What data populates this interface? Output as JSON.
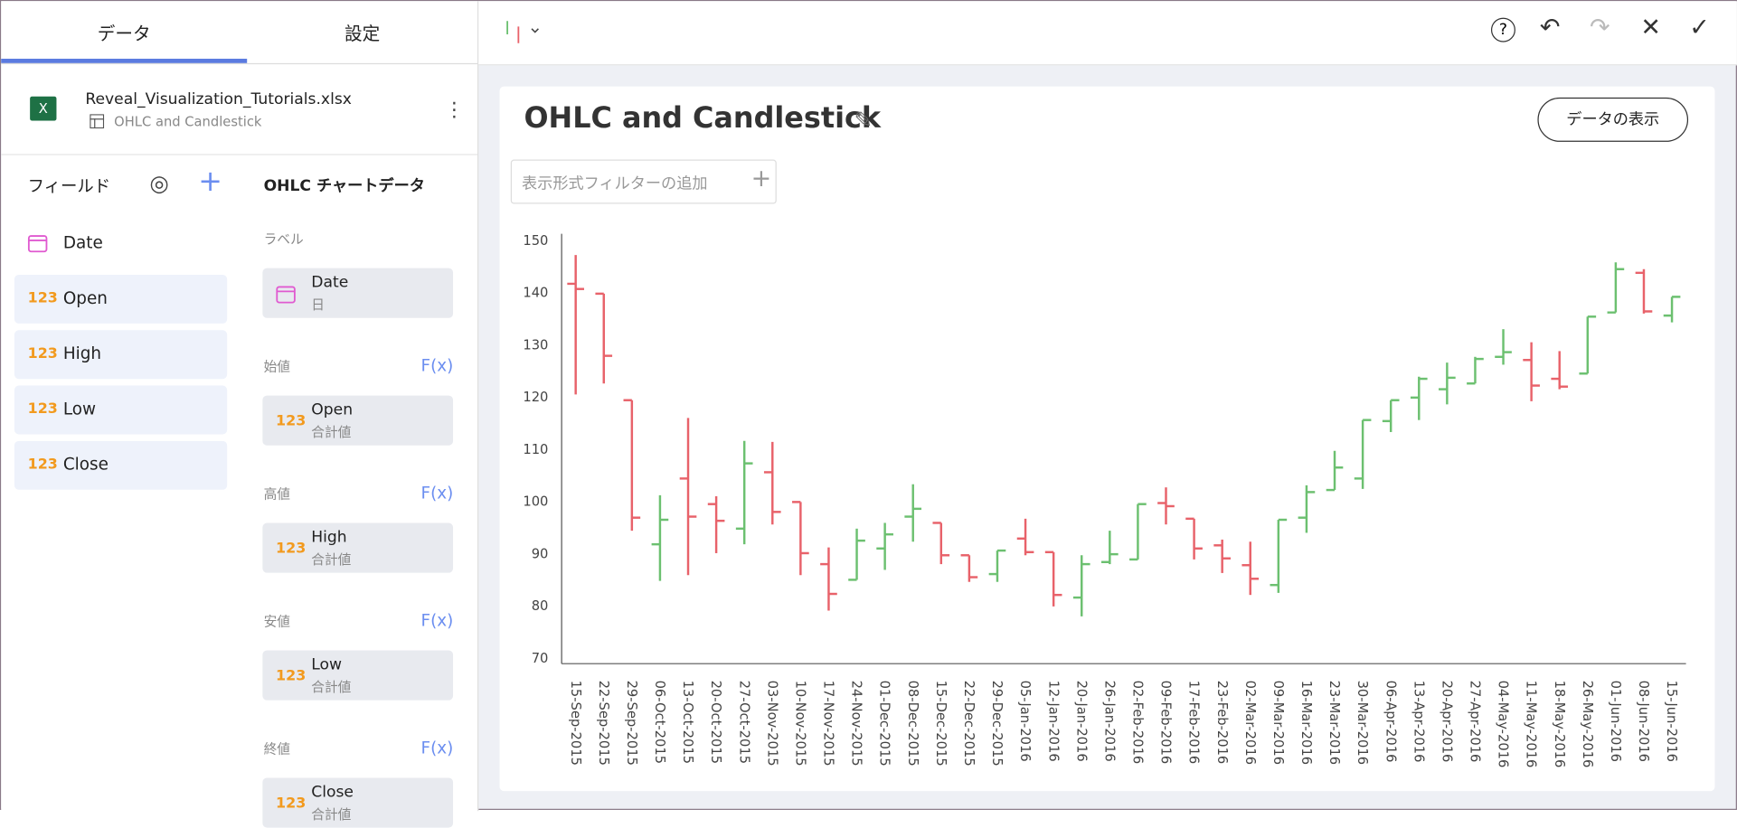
{
  "tabs": [
    "データ",
    "設定"
  ],
  "source": {
    "file": "Reveal_Visualization_Tutorials.xlsx",
    "sheet": "OHLC and Candlestick"
  },
  "fields_header": "フィールド",
  "fields": [
    {
      "name": "Date"
    },
    {
      "badge": "123",
      "name": "Open"
    },
    {
      "badge": "123",
      "name": "High"
    },
    {
      "badge": "123",
      "name": "Low"
    },
    {
      "badge": "123",
      "name": "Close"
    }
  ],
  "config": {
    "title": "OHLC チャートデータ",
    "sections": [
      {
        "label": "ラベル",
        "item": {
          "name": "Date",
          "agg": "日"
        }
      },
      {
        "label": "始値",
        "fx": "F(x)",
        "item": {
          "badge": "123",
          "name": "Open",
          "agg": "合計値"
        }
      },
      {
        "label": "高値",
        "fx": "F(x)",
        "item": {
          "badge": "123",
          "name": "High",
          "agg": "合計値"
        }
      },
      {
        "label": "安値",
        "fx": "F(x)",
        "item": {
          "badge": "123",
          "name": "Low",
          "agg": "合計値"
        }
      },
      {
        "label": "終値",
        "fx": "F(x)",
        "item": {
          "badge": "123",
          "name": "Close",
          "agg": "合計値"
        }
      }
    ]
  },
  "view_data_button": "データの表示",
  "filter_placeholder": "表示形式フィルターの追加",
  "chart_data": {
    "type": "ohlc",
    "title": "OHLC and Candlestick",
    "categories": [
      "15-Sep-2015",
      "22-Sep-2015",
      "29-Sep-2015",
      "06-Oct-2015",
      "13-Oct-2015",
      "20-Oct-2015",
      "27-Oct-2015",
      "03-Nov-2015",
      "10-Nov-2015",
      "17-Nov-2015",
      "24-Nov-2015",
      "01-Dec-2015",
      "08-Dec-2015",
      "15-Dec-2015",
      "22-Dec-2015",
      "29-Dec-2015",
      "05-Jan-2016",
      "12-Jan-2016",
      "20-Jan-2016",
      "26-Jan-2016",
      "02-Feb-2016",
      "09-Feb-2016",
      "17-Feb-2016",
      "23-Feb-2016",
      "02-Mar-2016",
      "09-Mar-2016",
      "16-Mar-2016",
      "23-Mar-2016",
      "30-Mar-2016",
      "06-Apr-2016",
      "13-Apr-2016",
      "20-Apr-2016",
      "27-Apr-2016",
      "04-May-2016",
      "11-May-2016",
      "18-May-2016",
      "26-May-2016",
      "01-Jun-2016",
      "08-Jun-2016",
      "15-Jun-2016"
    ],
    "open": [
      141.7,
      139.8,
      119.4,
      91.8,
      104.4,
      99.5,
      94.8,
      105.6,
      99.9,
      88,
      85,
      91,
      97.1,
      95.9,
      89.7,
      86.1,
      92.9,
      90.3,
      81.6,
      88.4,
      88.9,
      99.7,
      96.7,
      91.6,
      87.8,
      84,
      96.9,
      102.2,
      104.4,
      115.4,
      119.9,
      121.5,
      122.6,
      127.7,
      127.1,
      123.5,
      124.5,
      136.2,
      143.8,
      135.6
    ],
    "high": [
      147.2,
      139.8,
      119.4,
      101.2,
      116,
      101,
      111.6,
      111.4,
      99.9,
      91.2,
      94.8,
      95.9,
      103.3,
      95.9,
      89.7,
      90.6,
      96.7,
      90.3,
      89.7,
      94.4,
      99.5,
      102.7,
      96.7,
      92.7,
      92.3,
      96.5,
      103.1,
      109.7,
      115.6,
      119.4,
      123.9,
      126.6,
      127.7,
      133,
      130.5,
      128.8,
      135.4,
      145.8,
      144.5,
      139.2
    ],
    "low": [
      120.5,
      122.6,
      94.4,
      84.8,
      85.9,
      90.1,
      91.8,
      95.6,
      85.9,
      79.1,
      85,
      86.9,
      92.3,
      88,
      84.6,
      84.6,
      89.7,
      79.9,
      78,
      88,
      88.9,
      95.6,
      88.9,
      86.3,
      82.1,
      82.5,
      94,
      102.2,
      102.4,
      113.3,
      115.6,
      118.6,
      122.6,
      126.2,
      119.2,
      121.5,
      124.5,
      136.2,
      136,
      134.3
    ],
    "close": [
      140.7,
      127.9,
      96.9,
      96.5,
      97.1,
      96.3,
      107.3,
      98,
      90.1,
      82.3,
      92.5,
      93.7,
      98.6,
      89.7,
      85.5,
      90.6,
      90.3,
      82.1,
      88,
      89.9,
      99.5,
      99.1,
      91,
      89.1,
      85.2,
      96.5,
      101.8,
      106.5,
      115.6,
      119.4,
      123.5,
      123.7,
      127.3,
      128.6,
      122.2,
      122,
      135.4,
      144.5,
      136.4,
      139.2
    ],
    "ylim": [
      70,
      150
    ],
    "yticks": [
      70,
      80,
      90,
      100,
      110,
      120,
      130,
      140,
      150
    ],
    "grid": false,
    "up_color": "#6cc070",
    "down_color": "#e8626a"
  }
}
